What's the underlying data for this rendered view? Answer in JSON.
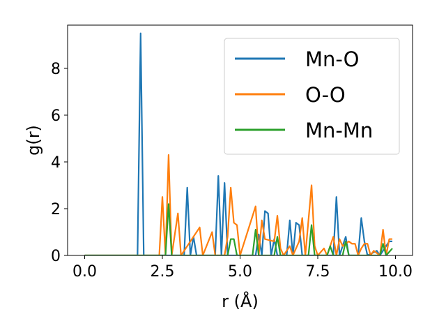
{
  "chart_data": {
    "type": "line",
    "xlabel": "r (Å)",
    "ylabel": "g(r)",
    "xlim": [
      -0.55,
      10.55
    ],
    "ylim": [
      0,
      9.85
    ],
    "xticks": [
      0.0,
      2.5,
      5.0,
      7.5,
      10.0
    ],
    "xtick_labels": [
      "0.0",
      "2.5",
      "5.0",
      "7.5",
      "10.0"
    ],
    "yticks": [
      0,
      2,
      4,
      6,
      8
    ],
    "ytick_labels": [
      "0",
      "2",
      "4",
      "6",
      "8"
    ],
    "grid": false,
    "legend_position": "top-right",
    "series": [
      {
        "name": "Mn-O",
        "color": "#1f77b4",
        "points": [
          [
            0,
            0
          ],
          [
            1.7,
            0
          ],
          [
            1.8,
            9.5
          ],
          [
            1.9,
            0
          ],
          [
            3.2,
            0
          ],
          [
            3.3,
            2.9
          ],
          [
            3.4,
            0
          ],
          [
            3.5,
            0.8
          ],
          [
            3.6,
            0
          ],
          [
            4.2,
            0
          ],
          [
            4.3,
            3.4
          ],
          [
            4.4,
            0
          ],
          [
            4.5,
            3.1
          ],
          [
            4.6,
            0
          ],
          [
            5.5,
            0
          ],
          [
            5.6,
            0.9
          ],
          [
            5.7,
            0
          ],
          [
            5.8,
            1.9
          ],
          [
            5.9,
            1.8
          ],
          [
            6.0,
            0
          ],
          [
            6.1,
            0.7
          ],
          [
            6.2,
            0
          ],
          [
            6.5,
            0
          ],
          [
            6.6,
            1.5
          ],
          [
            6.7,
            0
          ],
          [
            6.8,
            1.4
          ],
          [
            6.9,
            1.3
          ],
          [
            7.0,
            0
          ],
          [
            8.0,
            0
          ],
          [
            8.1,
            2.5
          ],
          [
            8.2,
            0
          ],
          [
            8.4,
            0.8
          ],
          [
            8.5,
            0
          ],
          [
            8.8,
            0
          ],
          [
            8.9,
            1.6
          ],
          [
            9.0,
            0.6
          ],
          [
            9.1,
            0
          ],
          [
            9.4,
            0.2
          ],
          [
            9.5,
            0
          ],
          [
            9.8,
            0.6
          ],
          [
            9.9,
            0.6
          ]
        ]
      },
      {
        "name": "O-O",
        "color": "#ff7f0e",
        "points": [
          [
            0,
            0
          ],
          [
            2.4,
            0
          ],
          [
            2.5,
            2.5
          ],
          [
            2.6,
            0
          ],
          [
            2.7,
            4.3
          ],
          [
            2.8,
            0
          ],
          [
            3.0,
            1.8
          ],
          [
            3.1,
            0
          ],
          [
            3.7,
            1.2
          ],
          [
            3.8,
            0
          ],
          [
            4.1,
            1.0
          ],
          [
            4.2,
            0
          ],
          [
            4.5,
            0
          ],
          [
            4.6,
            0.8
          ],
          [
            4.7,
            2.9
          ],
          [
            4.8,
            1.4
          ],
          [
            4.9,
            1.3
          ],
          [
            5.0,
            0
          ],
          [
            5.5,
            2.1
          ],
          [
            5.6,
            0
          ],
          [
            5.7,
            1.5
          ],
          [
            5.8,
            0.7
          ],
          [
            6.1,
            0.6
          ],
          [
            6.2,
            1.7
          ],
          [
            6.3,
            0.3
          ],
          [
            6.4,
            0
          ],
          [
            6.6,
            0.4
          ],
          [
            6.7,
            0
          ],
          [
            6.9,
            0.6
          ],
          [
            7.0,
            1.6
          ],
          [
            7.1,
            0
          ],
          [
            7.3,
            3.0
          ],
          [
            7.4,
            0.4
          ],
          [
            7.5,
            0
          ],
          [
            7.7,
            0.3
          ],
          [
            7.8,
            0
          ],
          [
            8.0,
            0.8
          ],
          [
            8.1,
            0
          ],
          [
            8.2,
            0.7
          ],
          [
            8.3,
            0.4
          ],
          [
            8.5,
            0.6
          ],
          [
            8.6,
            0.5
          ],
          [
            8.7,
            0.5
          ],
          [
            8.8,
            0
          ],
          [
            8.9,
            0.3
          ],
          [
            9.0,
            0.5
          ],
          [
            9.1,
            0.5
          ],
          [
            9.2,
            0
          ],
          [
            9.3,
            0.2
          ],
          [
            9.5,
            0
          ],
          [
            9.6,
            1.1
          ],
          [
            9.7,
            0
          ],
          [
            9.8,
            0.7
          ],
          [
            9.9,
            0.7
          ]
        ]
      },
      {
        "name": "Mn-Mn",
        "color": "#2ca02c",
        "points": [
          [
            0,
            0
          ],
          [
            2.6,
            0
          ],
          [
            2.7,
            2.2
          ],
          [
            2.8,
            0
          ],
          [
            4.6,
            0
          ],
          [
            4.7,
            0.7
          ],
          [
            4.8,
            0.7
          ],
          [
            4.9,
            0
          ],
          [
            5.4,
            0
          ],
          [
            5.5,
            1.1
          ],
          [
            5.6,
            0
          ],
          [
            6.1,
            0
          ],
          [
            6.2,
            0.8
          ],
          [
            6.3,
            0
          ],
          [
            7.2,
            0
          ],
          [
            7.3,
            1.3
          ],
          [
            7.4,
            0
          ],
          [
            7.8,
            0
          ],
          [
            7.9,
            0.4
          ],
          [
            8.0,
            0
          ],
          [
            8.3,
            0
          ],
          [
            8.4,
            0.6
          ],
          [
            8.5,
            0
          ],
          [
            9.5,
            0
          ],
          [
            9.6,
            0.5
          ],
          [
            9.7,
            0
          ],
          [
            9.9,
            0.3
          ]
        ]
      }
    ]
  }
}
